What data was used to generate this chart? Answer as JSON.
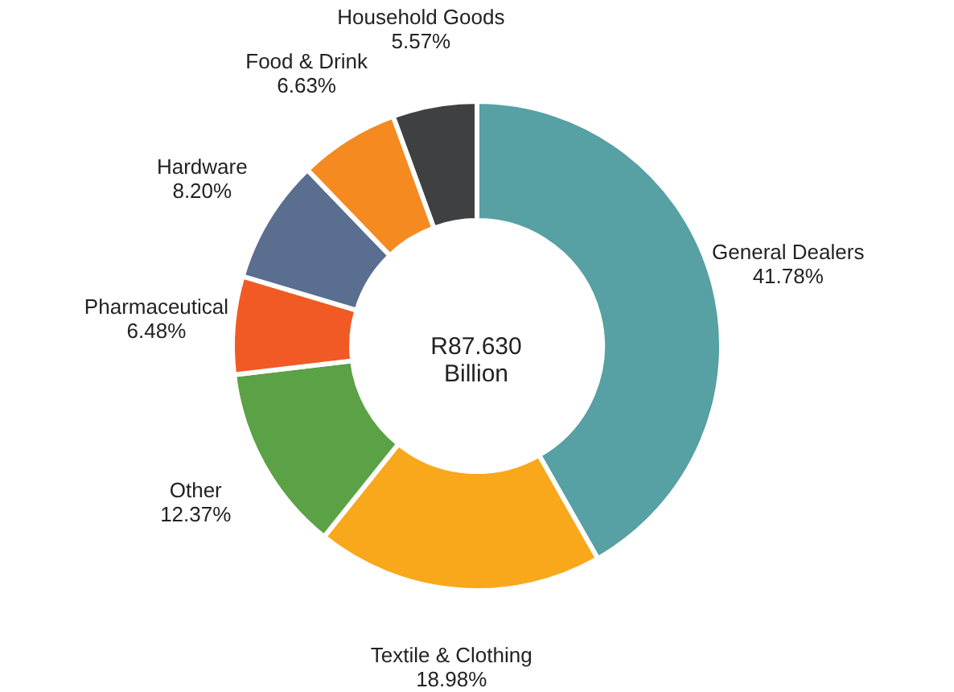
{
  "chart_data": {
    "type": "donut",
    "categories": [
      "General Dealers",
      "Textile & Clothing",
      "Other",
      "Pharmaceutical",
      "Hardware",
      "Food & Drink",
      "Household Goods"
    ],
    "values": [
      41.78,
      18.98,
      12.37,
      6.48,
      8.2,
      6.63,
      5.57
    ],
    "value_labels": [
      "41.78%",
      "18.98%",
      "12.37%",
      "6.48%",
      "8.20%",
      "6.63%",
      "5.57%"
    ],
    "colors": [
      "#57a0a3",
      "#f9a81b",
      "#5ba146",
      "#f15a24",
      "#5a6e90",
      "#f58a21",
      "#3f4042"
    ],
    "annotations": [
      "R87.630\nBillion"
    ],
    "legend": false
  }
}
